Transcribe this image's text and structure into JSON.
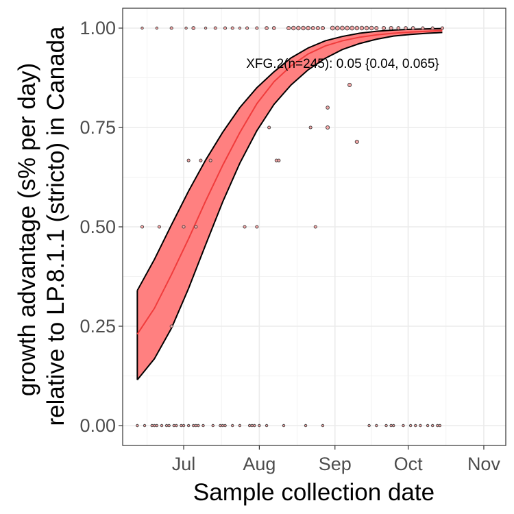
{
  "chart_data": {
    "type": "scatter",
    "xlabel": "Sample collection date",
    "ylabel_lines": [
      "growth advantage (s% per day)",
      "relative to LP.8.1.1 (stricto) in Canada"
    ],
    "xlim": [
      "2025-06-06",
      "2025-11-10"
    ],
    "ylim": [
      -0.05,
      1.05
    ],
    "x_ticks": [
      {
        "date": "2025-07-01",
        "label": "Jul"
      },
      {
        "date": "2025-08-01",
        "label": "Aug"
      },
      {
        "date": "2025-09-01",
        "label": "Sep"
      },
      {
        "date": "2025-10-01",
        "label": "Oct"
      },
      {
        "date": "2025-11-01",
        "label": "Nov"
      }
    ],
    "y_ticks": [
      {
        "value": 0,
        "label": "0.00"
      },
      {
        "value": 0.25,
        "label": "0.25"
      },
      {
        "value": 0.5,
        "label": "0.50"
      },
      {
        "value": 0.75,
        "label": "0.75"
      },
      {
        "value": 1,
        "label": "1.00"
      }
    ],
    "grid": true,
    "annotation": "XFG.2(n=245): 0.05 {0.04, 0.065}",
    "colors": {
      "ribbon": "#ff8080",
      "line": "#f03c3c",
      "points": "#f4a6a6",
      "ribbon_edge": "#000000"
    },
    "fit": {
      "x": [
        "2025-06-12",
        "2025-06-19",
        "2025-06-26",
        "2025-07-03",
        "2025-07-10",
        "2025-07-17",
        "2025-07-24",
        "2025-07-31",
        "2025-08-07",
        "2025-08-14",
        "2025-08-21",
        "2025-08-28",
        "2025-09-04",
        "2025-09-11",
        "2025-09-18",
        "2025-09-25",
        "2025-10-02",
        "2025-10-09",
        "2025-10-15"
      ],
      "y": [
        0.23,
        0.295,
        0.38,
        0.47,
        0.565,
        0.655,
        0.737,
        0.81,
        0.865,
        0.905,
        0.935,
        0.955,
        0.968,
        0.977,
        0.983,
        0.987,
        0.99,
        0.992,
        0.994
      ],
      "lower": [
        0.115,
        0.168,
        0.245,
        0.345,
        0.455,
        0.563,
        0.66,
        0.742,
        0.808,
        0.857,
        0.895,
        0.924,
        0.946,
        0.961,
        0.972,
        0.98,
        0.984,
        0.987,
        0.989
      ],
      "upper": [
        0.34,
        0.418,
        0.505,
        0.59,
        0.668,
        0.738,
        0.8,
        0.85,
        0.89,
        0.925,
        0.95,
        0.968,
        0.979,
        0.987,
        0.992,
        0.995,
        0.997,
        0.998,
        0.999
      ]
    },
    "points": [
      {
        "x": "2025-06-14",
        "y": 1,
        "n": 1
      },
      {
        "x": "2025-06-20",
        "y": 1,
        "n": 1
      },
      {
        "x": "2025-06-26",
        "y": 1,
        "n": 2
      },
      {
        "x": "2025-07-02",
        "y": 1,
        "n": 1
      },
      {
        "x": "2025-07-05",
        "y": 1,
        "n": 3
      },
      {
        "x": "2025-07-10",
        "y": 1,
        "n": 1
      },
      {
        "x": "2025-07-14",
        "y": 1,
        "n": 2
      },
      {
        "x": "2025-07-18",
        "y": 1,
        "n": 2
      },
      {
        "x": "2025-07-21",
        "y": 1,
        "n": 2
      },
      {
        "x": "2025-07-24",
        "y": 1,
        "n": 1
      },
      {
        "x": "2025-07-27",
        "y": 1,
        "n": 2
      },
      {
        "x": "2025-07-31",
        "y": 1,
        "n": 2
      },
      {
        "x": "2025-08-04",
        "y": 1,
        "n": 3
      },
      {
        "x": "2025-08-07",
        "y": 1,
        "n": 3
      },
      {
        "x": "2025-08-13",
        "y": 1,
        "n": 4
      },
      {
        "x": "2025-08-15",
        "y": 1,
        "n": 5
      },
      {
        "x": "2025-08-17",
        "y": 1,
        "n": 5
      },
      {
        "x": "2025-08-19",
        "y": 1,
        "n": 5
      },
      {
        "x": "2025-08-21",
        "y": 1,
        "n": 5
      },
      {
        "x": "2025-08-23",
        "y": 1,
        "n": 4
      },
      {
        "x": "2025-08-25",
        "y": 1,
        "n": 4
      },
      {
        "x": "2025-08-27",
        "y": 1,
        "n": 4
      },
      {
        "x": "2025-08-31",
        "y": 1,
        "n": 6
      },
      {
        "x": "2025-09-02",
        "y": 1,
        "n": 6
      },
      {
        "x": "2025-09-04",
        "y": 1,
        "n": 6
      },
      {
        "x": "2025-09-06",
        "y": 1,
        "n": 6
      },
      {
        "x": "2025-09-08",
        "y": 1,
        "n": 6
      },
      {
        "x": "2025-09-10",
        "y": 1,
        "n": 5
      },
      {
        "x": "2025-09-12",
        "y": 1,
        "n": 5
      },
      {
        "x": "2025-09-14",
        "y": 1,
        "n": 5
      },
      {
        "x": "2025-09-16",
        "y": 1,
        "n": 5
      },
      {
        "x": "2025-09-18",
        "y": 1,
        "n": 4
      },
      {
        "x": "2025-09-21",
        "y": 1,
        "n": 4
      },
      {
        "x": "2025-09-24",
        "y": 1,
        "n": 4
      },
      {
        "x": "2025-09-27",
        "y": 1,
        "n": 3
      },
      {
        "x": "2025-09-30",
        "y": 1,
        "n": 3
      },
      {
        "x": "2025-10-03",
        "y": 1,
        "n": 3
      },
      {
        "x": "2025-10-07",
        "y": 1,
        "n": 2
      },
      {
        "x": "2025-10-11",
        "y": 1,
        "n": 2
      },
      {
        "x": "2025-10-15",
        "y": 1,
        "n": 2
      },
      {
        "x": "2025-09-07",
        "y": 0.857,
        "n": 4
      },
      {
        "x": "2025-08-29",
        "y": 0.8,
        "n": 3
      },
      {
        "x": "2025-08-22",
        "y": 0.75,
        "n": 2
      },
      {
        "x": "2025-08-29",
        "y": 0.75,
        "n": 4
      },
      {
        "x": "2025-08-05",
        "y": 0.75,
        "n": 2
      },
      {
        "x": "2025-09-10",
        "y": 0.714,
        "n": 4
      },
      {
        "x": "2025-07-03",
        "y": 0.667,
        "n": 2
      },
      {
        "x": "2025-07-08",
        "y": 0.667,
        "n": 2
      },
      {
        "x": "2025-07-12",
        "y": 0.667,
        "n": 2
      },
      {
        "x": "2025-08-08",
        "y": 0.667,
        "n": 2
      },
      {
        "x": "2025-08-09",
        "y": 0.667,
        "n": 2
      },
      {
        "x": "2025-06-14",
        "y": 0.5,
        "n": 2
      },
      {
        "x": "2025-06-21",
        "y": 0.5,
        "n": 2
      },
      {
        "x": "2025-07-01",
        "y": 0.5,
        "n": 2
      },
      {
        "x": "2025-07-06",
        "y": 0.5,
        "n": 2
      },
      {
        "x": "2025-07-26",
        "y": 0.5,
        "n": 2
      },
      {
        "x": "2025-07-31",
        "y": 0.5,
        "n": 2
      },
      {
        "x": "2025-08-24",
        "y": 0.5,
        "n": 2
      },
      {
        "x": "2025-06-26",
        "y": 0.25,
        "n": 2
      },
      {
        "x": "2025-06-12",
        "y": 0,
        "n": 1
      },
      {
        "x": "2025-06-15",
        "y": 0,
        "n": 1
      },
      {
        "x": "2025-06-18",
        "y": 0,
        "n": 1
      },
      {
        "x": "2025-06-19",
        "y": 0,
        "n": 1
      },
      {
        "x": "2025-06-20",
        "y": 0,
        "n": 1
      },
      {
        "x": "2025-06-22",
        "y": 0,
        "n": 1
      },
      {
        "x": "2025-06-24",
        "y": 0,
        "n": 1
      },
      {
        "x": "2025-06-25",
        "y": 0,
        "n": 1
      },
      {
        "x": "2025-06-27",
        "y": 0,
        "n": 1
      },
      {
        "x": "2025-06-28",
        "y": 0,
        "n": 1
      },
      {
        "x": "2025-06-30",
        "y": 0,
        "n": 1
      },
      {
        "x": "2025-07-01",
        "y": 0,
        "n": 1
      },
      {
        "x": "2025-07-03",
        "y": 0,
        "n": 1
      },
      {
        "x": "2025-07-05",
        "y": 0,
        "n": 1
      },
      {
        "x": "2025-07-06",
        "y": 0,
        "n": 1
      },
      {
        "x": "2025-07-07",
        "y": 0,
        "n": 1
      },
      {
        "x": "2025-07-09",
        "y": 0,
        "n": 1
      },
      {
        "x": "2025-07-13",
        "y": 0,
        "n": 1
      },
      {
        "x": "2025-07-16",
        "y": 0,
        "n": 1
      },
      {
        "x": "2025-07-17",
        "y": 0,
        "n": 1
      },
      {
        "x": "2025-07-18",
        "y": 0,
        "n": 1
      },
      {
        "x": "2025-07-21",
        "y": 0,
        "n": 1
      },
      {
        "x": "2025-07-24",
        "y": 0,
        "n": 1
      },
      {
        "x": "2025-07-28",
        "y": 0,
        "n": 1
      },
      {
        "x": "2025-07-29",
        "y": 0,
        "n": 1
      },
      {
        "x": "2025-07-30",
        "y": 0,
        "n": 1
      },
      {
        "x": "2025-08-01",
        "y": 0,
        "n": 1
      },
      {
        "x": "2025-08-04",
        "y": 0,
        "n": 1
      },
      {
        "x": "2025-08-11",
        "y": 0,
        "n": 1
      },
      {
        "x": "2025-08-20",
        "y": 0,
        "n": 1
      },
      {
        "x": "2025-08-27",
        "y": 0,
        "n": 1
      },
      {
        "x": "2025-09-15",
        "y": 0,
        "n": 1
      },
      {
        "x": "2025-09-18",
        "y": 0,
        "n": 1
      },
      {
        "x": "2025-09-22",
        "y": 0,
        "n": 1
      },
      {
        "x": "2025-09-24",
        "y": 0,
        "n": 1
      },
      {
        "x": "2025-09-25",
        "y": 0,
        "n": 1
      },
      {
        "x": "2025-09-29",
        "y": 0,
        "n": 1
      },
      {
        "x": "2025-10-02",
        "y": 0,
        "n": 1
      },
      {
        "x": "2025-10-04",
        "y": 0,
        "n": 1
      },
      {
        "x": "2025-10-06",
        "y": 0,
        "n": 1
      },
      {
        "x": "2025-10-09",
        "y": 0,
        "n": 1
      },
      {
        "x": "2025-10-11",
        "y": 0,
        "n": 1
      },
      {
        "x": "2025-10-13",
        "y": 0,
        "n": 1
      },
      {
        "x": "2025-10-14",
        "y": 0,
        "n": 1
      }
    ]
  }
}
